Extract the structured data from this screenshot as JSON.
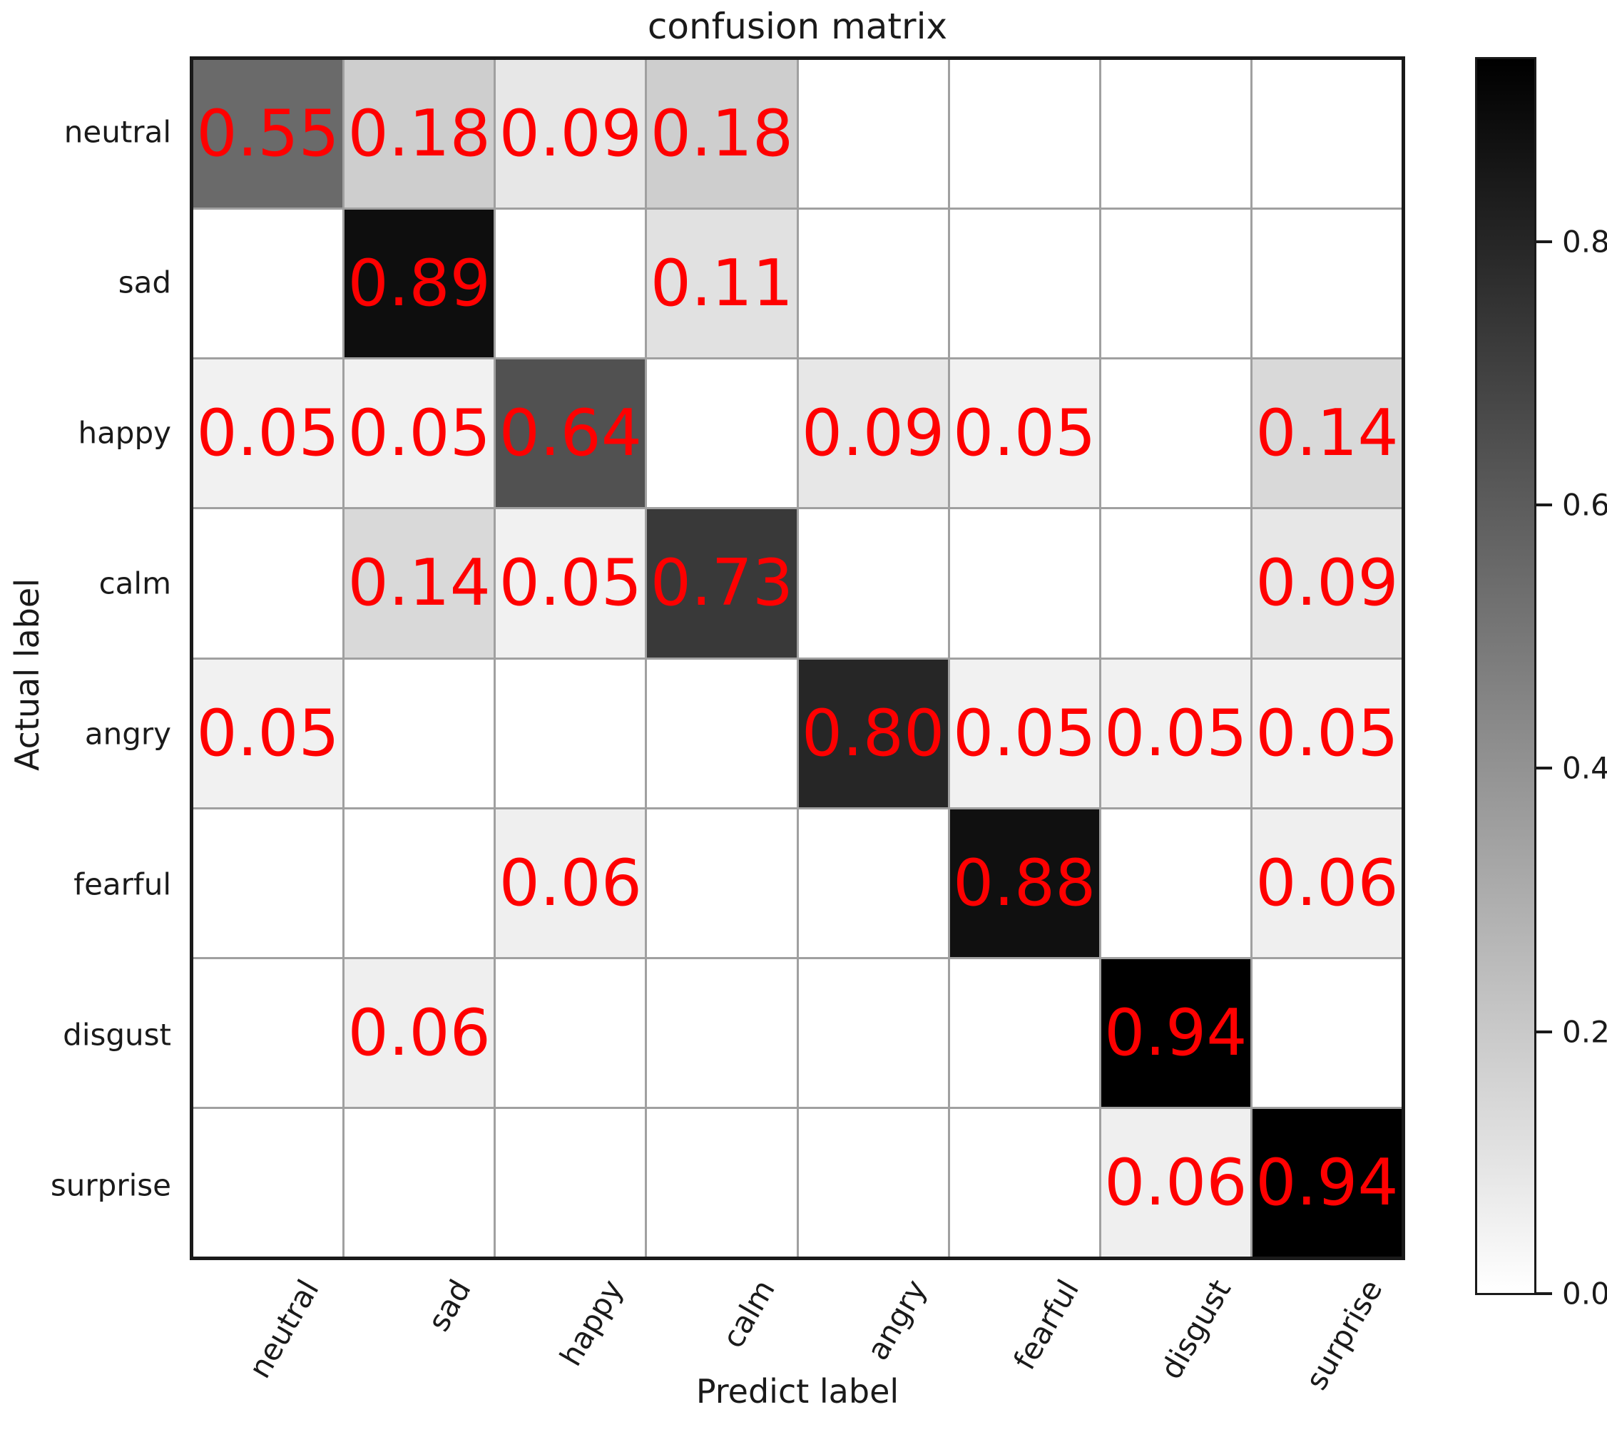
{
  "title": "confusion matrix",
  "xlabel": "Predict label",
  "ylabel": "Actual label",
  "chart_data": {
    "type": "heatmap",
    "title": "confusion matrix",
    "xlabel": "Predict label",
    "ylabel": "Actual label",
    "x_categories": [
      "neutral",
      "sad",
      "happy",
      "calm",
      "angry",
      "fearful",
      "disgust",
      "surprise"
    ],
    "y_categories": [
      "neutral",
      "sad",
      "happy",
      "calm",
      "angry",
      "fearful",
      "disgust",
      "surprise"
    ],
    "matrix": [
      [
        0.55,
        0.18,
        0.09,
        0.18,
        0,
        0,
        0,
        0
      ],
      [
        0,
        0.89,
        0,
        0.11,
        0,
        0,
        0,
        0
      ],
      [
        0.05,
        0.05,
        0.64,
        0,
        0.09,
        0.05,
        0,
        0.14
      ],
      [
        0,
        0.14,
        0.05,
        0.73,
        0,
        0,
        0,
        0.09
      ],
      [
        0.05,
        0,
        0,
        0,
        0.8,
        0.05,
        0.05,
        0.05
      ],
      [
        0,
        0,
        0.06,
        0,
        0,
        0.88,
        0,
        0.06
      ],
      [
        0,
        0.06,
        0,
        0,
        0,
        0,
        0.94,
        0
      ],
      [
        0,
        0,
        0,
        0,
        0,
        0,
        0.06,
        0.94
      ]
    ],
    "annotation_rule": "values shown in red only when > 0, formatted to 2 decimals",
    "vmin": 0.0,
    "vmax": 0.94,
    "colormap": "linear white-to-black (grayscale, darker = higher)",
    "colorbar": {
      "position": "right",
      "ticks": [
        0.0,
        0.2,
        0.4,
        0.6,
        0.8
      ],
      "tick_labels": [
        "0.0",
        "0.2",
        "0.4",
        "0.6",
        "0.8"
      ]
    },
    "grid": true,
    "x_tick_rotation_deg": 60
  },
  "colors": {
    "annotation": "#ff0000",
    "gridline": "#a0a0a0",
    "axis_border": "#1a1a1a",
    "background": "#ffffff"
  }
}
